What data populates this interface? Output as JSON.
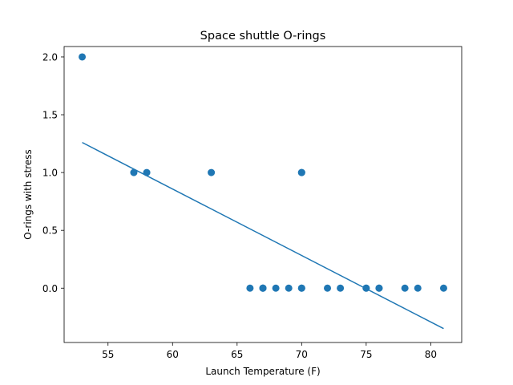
{
  "chart_data": {
    "type": "scatter",
    "title": "Space shuttle O-rings",
    "xlabel": "Launch Temperature (F)",
    "ylabel": "O-rings with stress",
    "xlim": [
      51.6,
      82.4
    ],
    "ylim": [
      -0.47,
      2.09
    ],
    "xticks": [
      {
        "value": 55,
        "label": "55"
      },
      {
        "value": 60,
        "label": "60"
      },
      {
        "value": 65,
        "label": "65"
      },
      {
        "value": 70,
        "label": "70"
      },
      {
        "value": 75,
        "label": "75"
      },
      {
        "value": 80,
        "label": "80"
      }
    ],
    "yticks": [
      {
        "value": 0.0,
        "label": "0.0"
      },
      {
        "value": 0.5,
        "label": "0.5"
      },
      {
        "value": 1.0,
        "label": "1.0"
      },
      {
        "value": 1.5,
        "label": "1.5"
      },
      {
        "value": 2.0,
        "label": "2.0"
      }
    ],
    "grid": false,
    "legend": "none",
    "series": [
      {
        "kind": "scatter",
        "color": "#1f77b4",
        "points": [
          {
            "x": 53,
            "y": 2
          },
          {
            "x": 57,
            "y": 1
          },
          {
            "x": 58,
            "y": 1
          },
          {
            "x": 63,
            "y": 1
          },
          {
            "x": 66,
            "y": 0
          },
          {
            "x": 67,
            "y": 0
          },
          {
            "x": 67,
            "y": 0
          },
          {
            "x": 67,
            "y": 0
          },
          {
            "x": 68,
            "y": 0
          },
          {
            "x": 69,
            "y": 0
          },
          {
            "x": 70,
            "y": 1
          },
          {
            "x": 70,
            "y": 1
          },
          {
            "x": 70,
            "y": 0
          },
          {
            "x": 70,
            "y": 0
          },
          {
            "x": 72,
            "y": 0
          },
          {
            "x": 73,
            "y": 0
          },
          {
            "x": 75,
            "y": 0
          },
          {
            "x": 75,
            "y": 0
          },
          {
            "x": 76,
            "y": 0
          },
          {
            "x": 76,
            "y": 0
          },
          {
            "x": 78,
            "y": 0
          },
          {
            "x": 79,
            "y": 0
          },
          {
            "x": 81,
            "y": 0
          }
        ]
      },
      {
        "kind": "line",
        "color": "#1f77b4",
        "points": [
          {
            "x": 53,
            "y": 1.26
          },
          {
            "x": 81,
            "y": -0.35
          }
        ]
      }
    ]
  }
}
